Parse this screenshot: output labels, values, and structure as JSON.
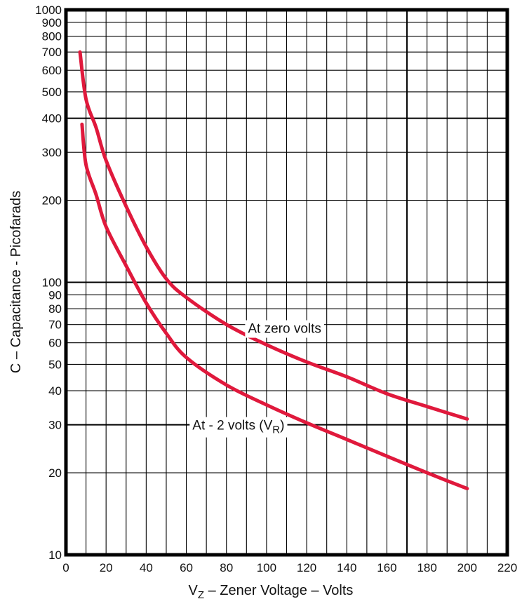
{
  "chart_data": {
    "type": "line",
    "title": "",
    "xlabel": "V",
    "xlabel_subscript": "Z",
    "xlabel_rest": " – Zener Voltage – Volts",
    "ylabel": "C – Capacitance - Picofarads",
    "x_axis": {
      "range": [
        0,
        220
      ],
      "major_ticks": [
        0,
        20,
        40,
        60,
        80,
        100,
        120,
        140,
        160,
        180,
        200,
        220
      ],
      "tick_labels": [
        "0",
        "20",
        "40",
        "60",
        "80",
        "100",
        "120",
        "140",
        "160",
        "180",
        "200",
        "220"
      ],
      "minor_step": 10,
      "emphasized_lines": [
        170
      ]
    },
    "y_axis": {
      "scale": "log",
      "range": [
        10,
        1000
      ],
      "ticks": [
        10,
        20,
        30,
        40,
        50,
        60,
        70,
        80,
        90,
        100,
        200,
        300,
        400,
        500,
        600,
        700,
        800,
        900,
        1000
      ],
      "tick_labels": [
        "10",
        "20",
        "30",
        "40",
        "50",
        "60",
        "70",
        "80",
        "90",
        "100",
        "200",
        "300",
        "400",
        "500",
        "600",
        "700",
        "800",
        "900",
        "1000"
      ],
      "emphasized_lines": [
        30,
        100,
        400,
        1000
      ]
    },
    "grid": true,
    "series": [
      {
        "name": "At zero volts",
        "color": "#e0193c",
        "points": [
          [
            7,
            700
          ],
          [
            10,
            470
          ],
          [
            15,
            370
          ],
          [
            20,
            280
          ],
          [
            30,
            190
          ],
          [
            40,
            135
          ],
          [
            50,
            103
          ],
          [
            60,
            88
          ],
          [
            80,
            70
          ],
          [
            100,
            59
          ],
          [
            120,
            51
          ],
          [
            140,
            45
          ],
          [
            160,
            39
          ],
          [
            180,
            35
          ],
          [
            200,
            31.5
          ]
        ]
      },
      {
        "name": "At - 2 volts (VR)",
        "color": "#e0193c",
        "points": [
          [
            8,
            380
          ],
          [
            10,
            270
          ],
          [
            15,
            210
          ],
          [
            20,
            160
          ],
          [
            30,
            115
          ],
          [
            40,
            84
          ],
          [
            50,
            65
          ],
          [
            60,
            53
          ],
          [
            80,
            42
          ],
          [
            100,
            35.5
          ],
          [
            120,
            30.5
          ],
          [
            140,
            26.5
          ],
          [
            160,
            23
          ],
          [
            180,
            20
          ],
          [
            200,
            17.5
          ]
        ]
      }
    ],
    "annotations": [
      {
        "text": "At zero volts",
        "x": 109,
        "y": 68
      },
      {
        "text_main": "At - 2 volts (V",
        "text_sub": "R",
        "text_tail": ")",
        "x": 86,
        "y": 30
      }
    ]
  }
}
